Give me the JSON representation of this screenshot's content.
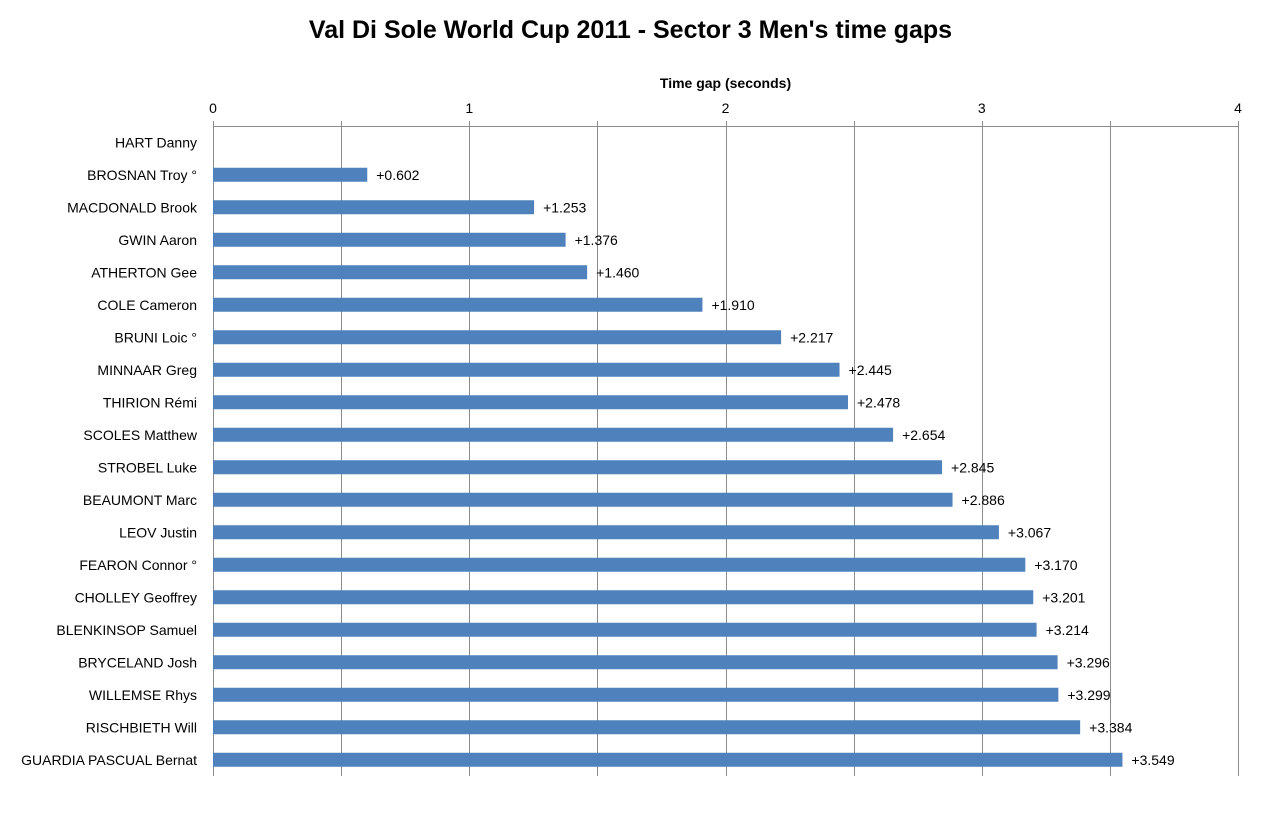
{
  "chart_data": {
    "type": "bar",
    "orientation": "horizontal",
    "title": "Val Di Sole World Cup 2011 - Sector 3 Men's time gaps",
    "xlabel": "Time gap (seconds)",
    "ylabel": "",
    "xlim": [
      0,
      4
    ],
    "x_ticks": [
      "0",
      "1",
      "2",
      "3",
      "4"
    ],
    "x_axis_position": "top",
    "grid": true,
    "bar_color": "#4F81BD",
    "categories": [
      "HART Danny",
      "BROSNAN Troy °",
      "MACDONALD Brook",
      "GWIN Aaron",
      "ATHERTON Gee",
      "COLE Cameron",
      "BRUNI Loic °",
      "MINNAAR Greg",
      "THIRION Rémi",
      "SCOLES Matthew",
      "STROBEL Luke",
      "BEAUMONT Marc",
      "LEOV Justin",
      "FEARON Connor °",
      "CHOLLEY Geoffrey",
      "BLENKINSOP Samuel",
      "BRYCELAND Josh",
      "WILLEMSE Rhys",
      "RISCHBIETH Will",
      "GUARDIA PASCUAL Bernat"
    ],
    "values": [
      0,
      0.602,
      1.253,
      1.376,
      1.46,
      1.91,
      2.217,
      2.445,
      2.478,
      2.654,
      2.845,
      2.886,
      3.067,
      3.17,
      3.201,
      3.214,
      3.296,
      3.299,
      3.384,
      3.549
    ],
    "data_labels": [
      "",
      "+0.602",
      "+1.253",
      "+1.376",
      "+1.460",
      "+1.910",
      "+2.217",
      "+2.445",
      "+2.478",
      "+2.654",
      "+2.845",
      "+2.886",
      "+3.067",
      "+3.170",
      "+3.201",
      "+3.214",
      "+3.296",
      "+3.299",
      "+3.384",
      "+3.549"
    ]
  }
}
